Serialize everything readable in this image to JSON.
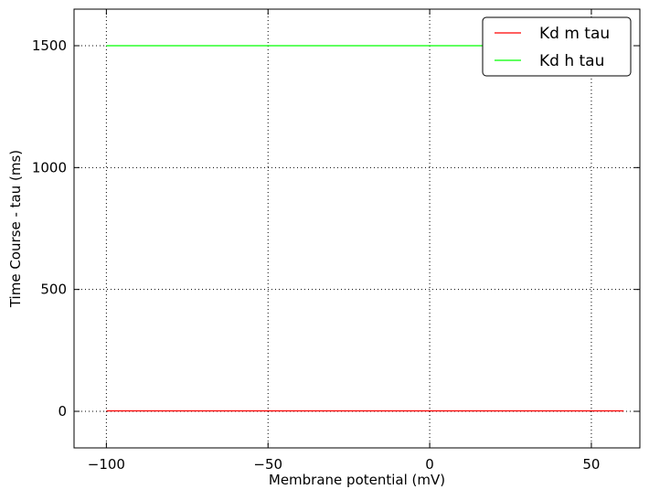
{
  "chart_data": {
    "type": "line",
    "title": "",
    "xlabel": "Membrane potential (mV)",
    "ylabel": "Time Course - tau (ms)",
    "xlim": [
      -110,
      65
    ],
    "ylim": [
      -150,
      1650
    ],
    "xticks": [
      -100,
      -50,
      0,
      50
    ],
    "yticks": [
      0,
      500,
      1000,
      1500
    ],
    "xtick_labels": [
      "−100",
      "−50",
      "0",
      "50"
    ],
    "ytick_labels": [
      "0",
      "500",
      "1000",
      "1500"
    ],
    "grid": true,
    "legend_position": "top-right",
    "series": [
      {
        "name": "Kd m tau",
        "color": "#ff0000",
        "x": [
          -100,
          60
        ],
        "y": [
          2,
          2
        ]
      },
      {
        "name": "Kd h tau",
        "color": "#00ff00",
        "x": [
          -100,
          60
        ],
        "y": [
          1500,
          1500
        ]
      }
    ]
  }
}
